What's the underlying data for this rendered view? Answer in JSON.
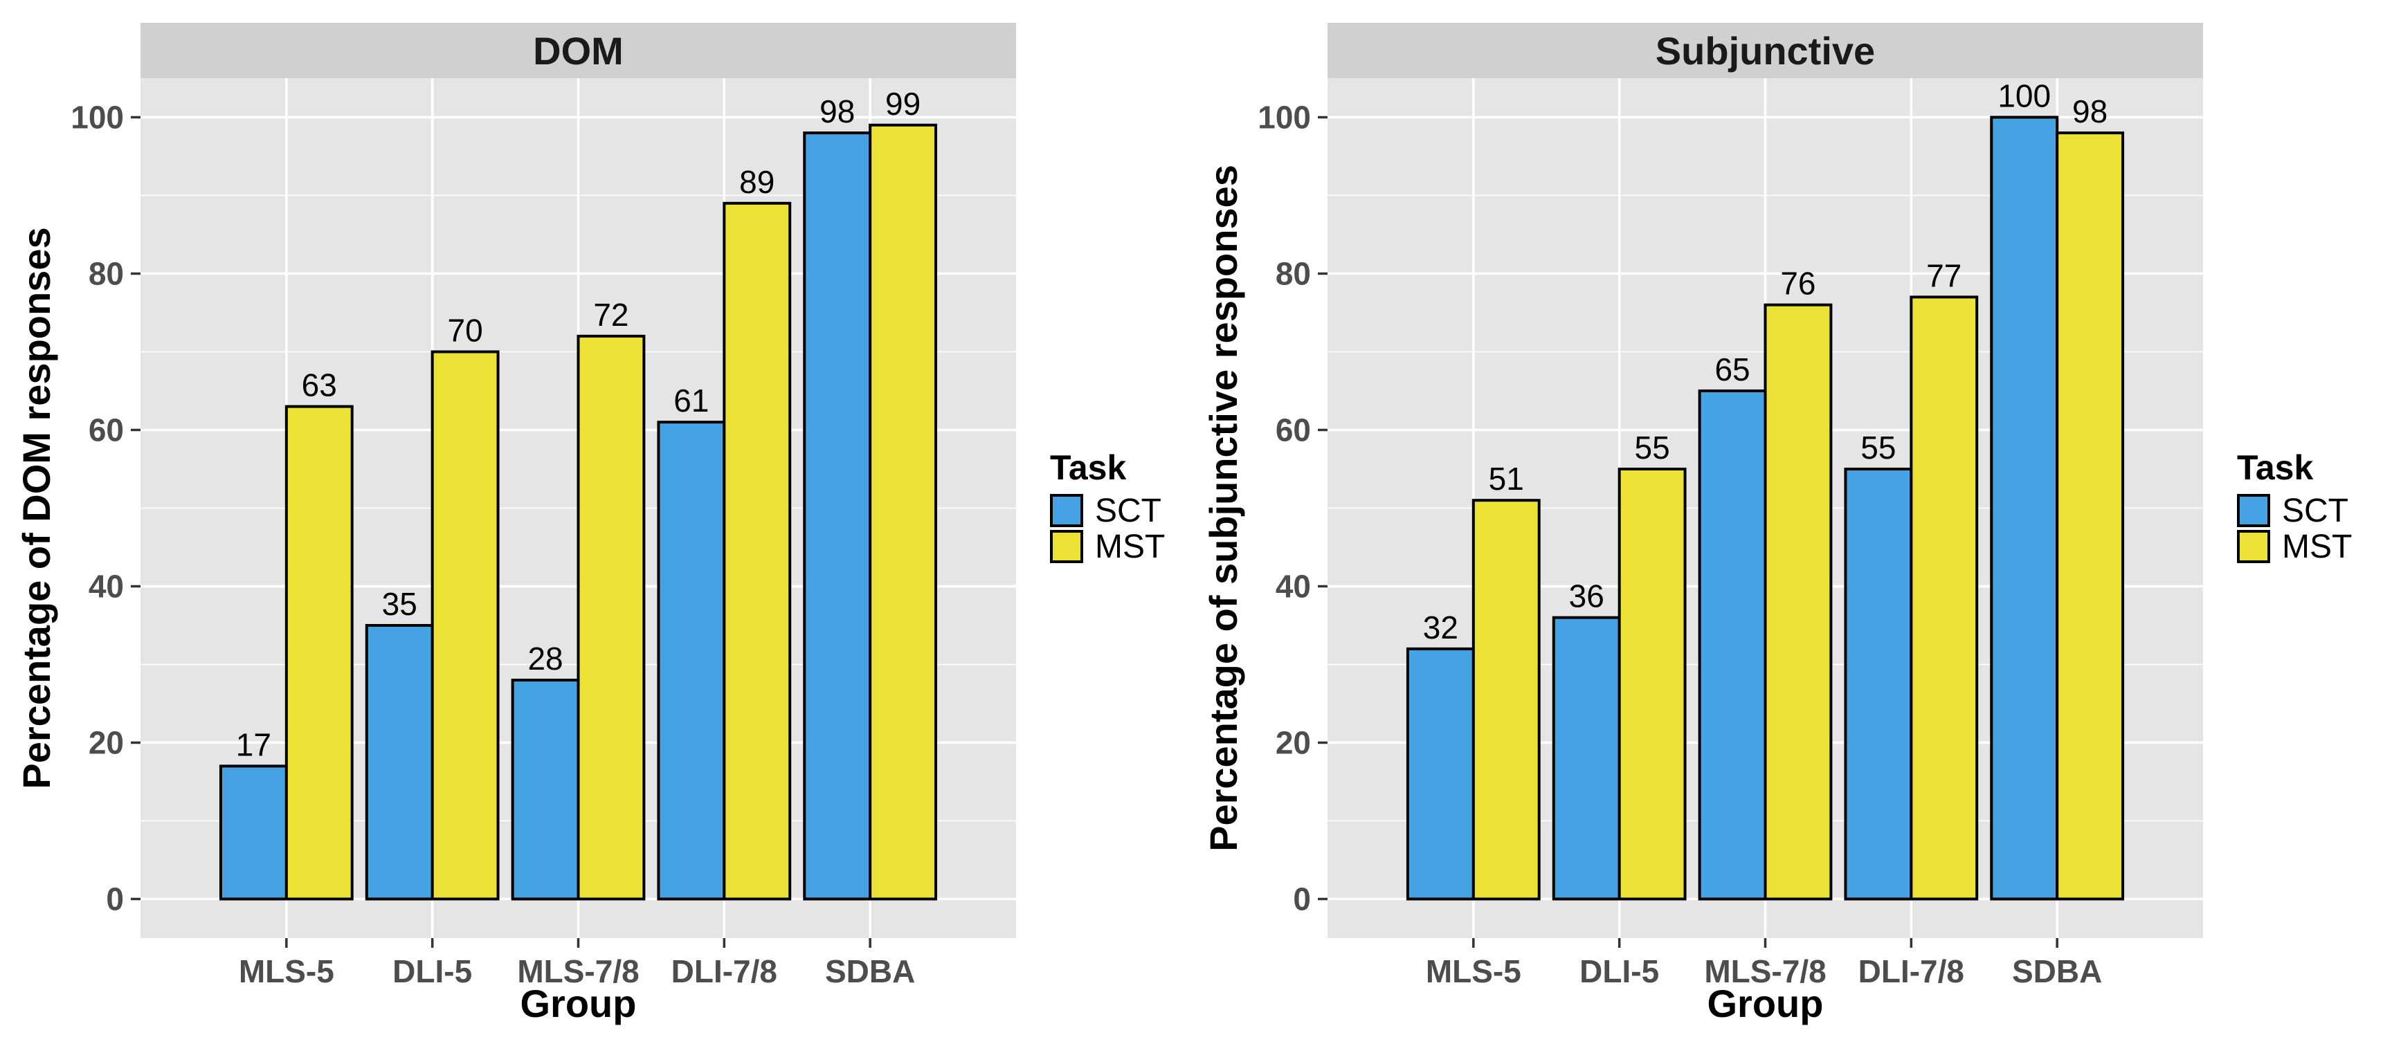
{
  "chart_data": [
    {
      "type": "bar",
      "title": "DOM",
      "xlabel": "Group",
      "ylabel": "Percentage of DOM responses",
      "categories": [
        "MLS-5",
        "DLI-5",
        "MLS-7/8",
        "DLI-7/8",
        "SDBA"
      ],
      "series": [
        {
          "name": "SCT",
          "values": [
            17,
            35,
            28,
            61,
            98
          ]
        },
        {
          "name": "MST",
          "values": [
            63,
            70,
            72,
            89,
            99
          ]
        }
      ],
      "ylim": [
        -5,
        105
      ],
      "yticks": [
        0,
        20,
        40,
        60,
        80,
        100
      ],
      "grid": true,
      "legend": {
        "title": "Task",
        "placement": "right"
      }
    },
    {
      "type": "bar",
      "title": "Subjunctive",
      "xlabel": "Group",
      "ylabel": "Percentage of subjunctive responses",
      "categories": [
        "MLS-5",
        "DLI-5",
        "MLS-7/8",
        "DLI-7/8",
        "SDBA"
      ],
      "series": [
        {
          "name": "SCT",
          "values": [
            32,
            36,
            65,
            55,
            100
          ]
        },
        {
          "name": "MST",
          "values": [
            51,
            55,
            76,
            77,
            98
          ]
        }
      ],
      "ylim": [
        -5,
        105
      ],
      "yticks": [
        0,
        20,
        40,
        60,
        80,
        100
      ],
      "grid": true,
      "legend": {
        "title": "Task",
        "placement": "right"
      }
    }
  ],
  "colors": {
    "SCT": "#45a3e3",
    "MST": "#ece236",
    "panel_bg": "#e5e5e5",
    "strip_bg": "#d0d0d0",
    "grid": "#ffffff"
  }
}
